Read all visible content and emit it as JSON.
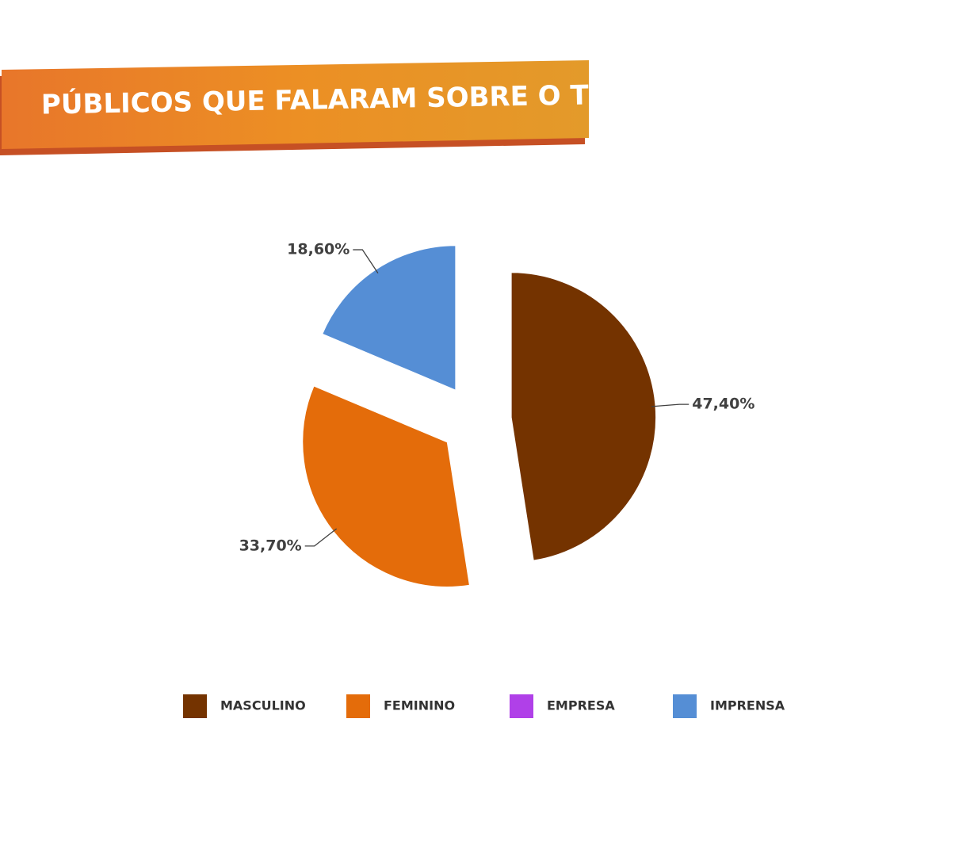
{
  "chart_data": {
    "type": "pie",
    "title": "PÚBLICOS QUE FALARAM SOBRE O TEMA",
    "categories": [
      "MASCULINO",
      "FEMININO",
      "EMPRESA",
      "IMPRENSA"
    ],
    "values": [
      47.4,
      33.7,
      0,
      18.6
    ],
    "value_labels": [
      "47,40%",
      "33,70%",
      null,
      "18,60%"
    ],
    "colors": [
      "#743300",
      "#e46c0a",
      "#b040e8",
      "#558ed5"
    ],
    "legend": "bottom"
  }
}
